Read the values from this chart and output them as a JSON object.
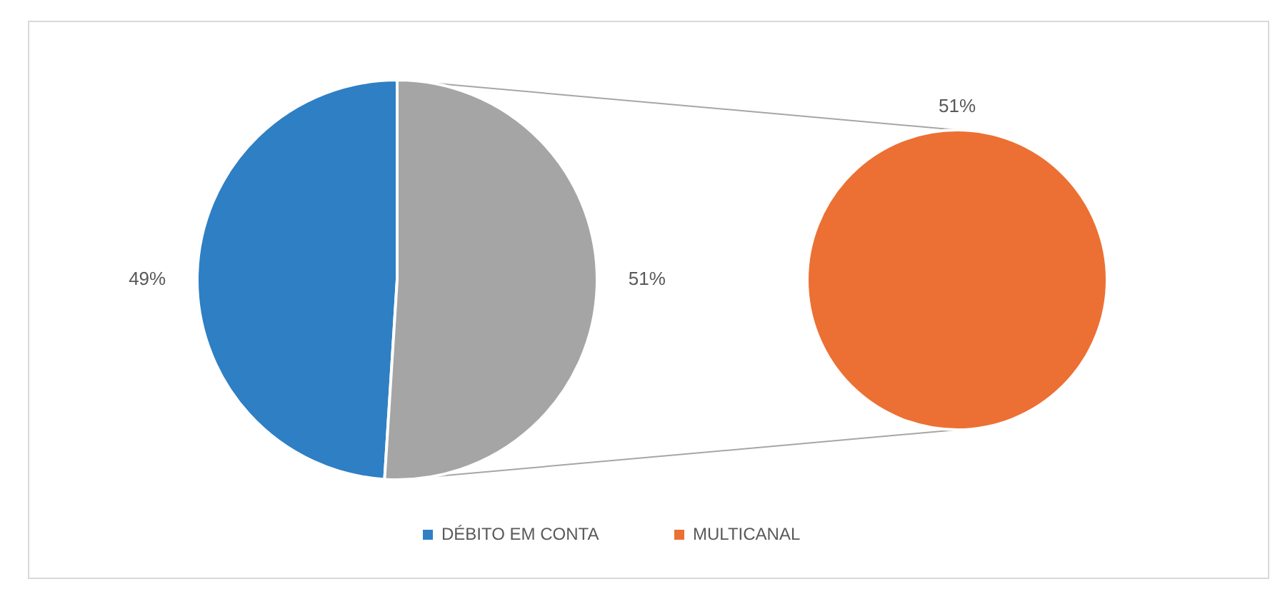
{
  "chart_data": [
    {
      "type": "pie",
      "categories": [
        "DÉBITO EM CONTA",
        null
      ],
      "values": [
        49,
        51
      ],
      "colors": [
        "#2e7fc4",
        "#a5a5a5"
      ],
      "value_labels": [
        "49%",
        "51%"
      ],
      "legend": "bottom"
    },
    {
      "type": "pie",
      "categories": [
        "MULTICANAL"
      ],
      "values": [
        51
      ],
      "colors": [
        "#ec7033"
      ],
      "value_labels": [
        "51%"
      ],
      "legend": "bottom"
    }
  ]
}
